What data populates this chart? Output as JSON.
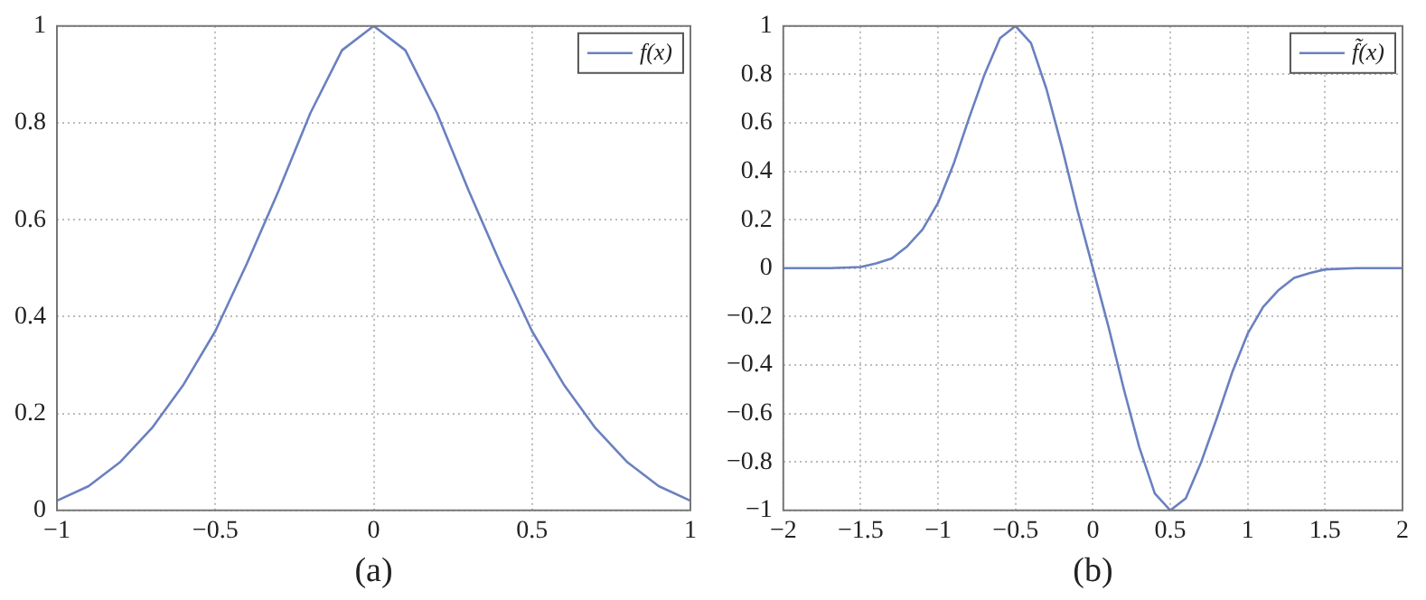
{
  "chart_data": [
    {
      "type": "line",
      "xlabel": "(a)",
      "x": [
        -1,
        -0.9,
        -0.8,
        -0.7,
        -0.6,
        -0.5,
        -0.4,
        -0.3,
        -0.2,
        -0.1,
        0,
        0.1,
        0.2,
        0.3,
        0.4,
        0.5,
        0.6,
        0.7,
        0.8,
        0.9,
        1
      ],
      "series": [
        {
          "name": "f(x)",
          "color": "#6a80c0",
          "values": [
            0.02,
            0.05,
            0.1,
            0.17,
            0.26,
            0.37,
            0.51,
            0.66,
            0.82,
            0.95,
            1,
            0.95,
            0.82,
            0.66,
            0.51,
            0.37,
            0.26,
            0.17,
            0.1,
            0.05,
            0.02
          ]
        }
      ],
      "xlim": [
        -1,
        1
      ],
      "xticks": [
        -1,
        -0.5,
        0,
        0.5,
        1
      ],
      "ylim": [
        0,
        1
      ],
      "yticks": [
        0,
        0.2,
        0.4,
        0.6,
        0.8,
        1
      ],
      "grid": true,
      "legend": "top right",
      "marker": "none",
      "line_style": "solid"
    },
    {
      "type": "line",
      "xlabel": "(b)",
      "x": [
        -2,
        -1.7,
        -1.5,
        -1.4,
        -1.3,
        -1.2,
        -1.1,
        -1,
        -0.9,
        -0.8,
        -0.7,
        -0.6,
        -0.5,
        -0.4,
        -0.3,
        -0.2,
        -0.1,
        0,
        0.1,
        0.2,
        0.3,
        0.4,
        0.5,
        0.6,
        0.7,
        0.8,
        0.9,
        1,
        1.1,
        1.2,
        1.3,
        1.4,
        1.5,
        1.7,
        2
      ],
      "series": [
        {
          "name": "f̃(x)",
          "color": "#6a80c0",
          "values": [
            0,
            0,
            0.005,
            0.02,
            0.04,
            0.09,
            0.16,
            0.27,
            0.43,
            0.62,
            0.8,
            0.95,
            1,
            0.93,
            0.74,
            0.5,
            0.24,
            0,
            -0.24,
            -0.5,
            -0.74,
            -0.93,
            -1,
            -0.95,
            -0.8,
            -0.62,
            -0.43,
            -0.27,
            -0.16,
            -0.09,
            -0.04,
            -0.02,
            -0.005,
            0,
            0
          ]
        }
      ],
      "xlim": [
        -2,
        2
      ],
      "xticks": [
        -2,
        -1.5,
        -1,
        -0.5,
        0,
        0.5,
        1,
        1.5,
        2
      ],
      "ylim": [
        -1,
        1
      ],
      "yticks": [
        -1,
        -0.8,
        -0.6,
        -0.4,
        -0.2,
        0,
        0.2,
        0.4,
        0.6,
        0.8,
        1
      ],
      "grid": true,
      "legend": "top right",
      "marker": "none",
      "line_style": "solid"
    }
  ]
}
